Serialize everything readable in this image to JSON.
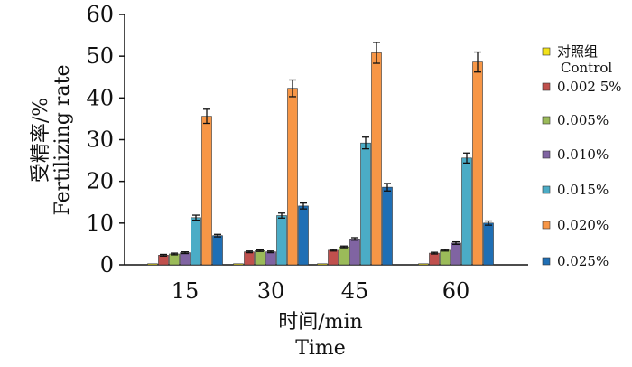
{
  "chart_data": {
    "type": "bar",
    "categories": [
      "15",
      "30",
      "45",
      "60"
    ],
    "xlabel_cn": "时间/min",
    "xlabel_en": "Time",
    "ylabel_cn": "受精率/%",
    "ylabel_en": "Fertilizing rate",
    "ylim": [
      0,
      60
    ],
    "yticks": [
      0,
      10,
      20,
      30,
      40,
      50,
      60
    ],
    "grid": false,
    "legend_position": "right",
    "series": [
      {
        "name": "对照组",
        "name_en": "Control",
        "color": "#f2e21a",
        "values": [
          0,
          0,
          0,
          0
        ],
        "errors": [
          0,
          0,
          0,
          0
        ]
      },
      {
        "name": "0.002 5%",
        "color": "#c0504d",
        "values": [
          2.3,
          3.1,
          3.5,
          2.8
        ],
        "errors": [
          0.2,
          0.2,
          0.2,
          0.2
        ]
      },
      {
        "name": "0.005%",
        "color": "#9bbb59",
        "values": [
          2.6,
          3.4,
          4.3,
          3.5
        ],
        "errors": [
          0.2,
          0.2,
          0.2,
          0.2
        ]
      },
      {
        "name": "0.010%",
        "color": "#8064a2",
        "values": [
          2.9,
          3.1,
          6.2,
          5.2
        ],
        "errors": [
          0.2,
          0.2,
          0.3,
          0.3
        ]
      },
      {
        "name": "0.015%",
        "color": "#4bacc6",
        "values": [
          11.3,
          11.8,
          29.2,
          25.6
        ],
        "errors": [
          0.6,
          0.6,
          1.4,
          1.2
        ]
      },
      {
        "name": "0.020%",
        "color": "#f79646",
        "values": [
          35.6,
          42.3,
          50.8,
          48.6
        ],
        "errors": [
          1.7,
          2.0,
          2.5,
          2.4
        ]
      },
      {
        "name": "0.025%",
        "color": "#1f6fb5",
        "values": [
          7.0,
          14.1,
          18.6,
          10.0
        ],
        "errors": [
          0.3,
          0.7,
          0.9,
          0.5
        ]
      }
    ]
  }
}
